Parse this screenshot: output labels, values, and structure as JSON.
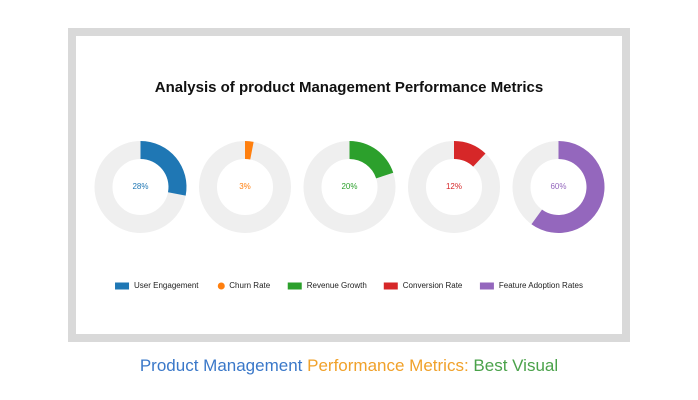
{
  "chart_data": {
    "type": "donut",
    "title": "Analysis of product Management Performance Metrics",
    "categories": [
      "User Engagement",
      "Churn Rate",
      "Revenue Growth",
      "Conversion Rate",
      "Feature Adoption Rates"
    ],
    "values": [
      28,
      3,
      20,
      12,
      60
    ],
    "value_labels": [
      "28%",
      "3%",
      "20%",
      "12%",
      "60%"
    ],
    "colors": [
      "#1f77b4",
      "#ff7f0e",
      "#2ca02c",
      "#d62728",
      "#9467bd"
    ],
    "markers": [
      "rect",
      "circle",
      "rect",
      "rect",
      "rect"
    ],
    "ylim": [
      0,
      100
    ]
  },
  "caption": [
    {
      "text": "Product Management",
      "color": "#3a78c9"
    },
    {
      "text": "Performance Metrics:",
      "color": "#f0a12a"
    },
    {
      "text": "Best Visual",
      "color": "#4aa24a"
    }
  ]
}
